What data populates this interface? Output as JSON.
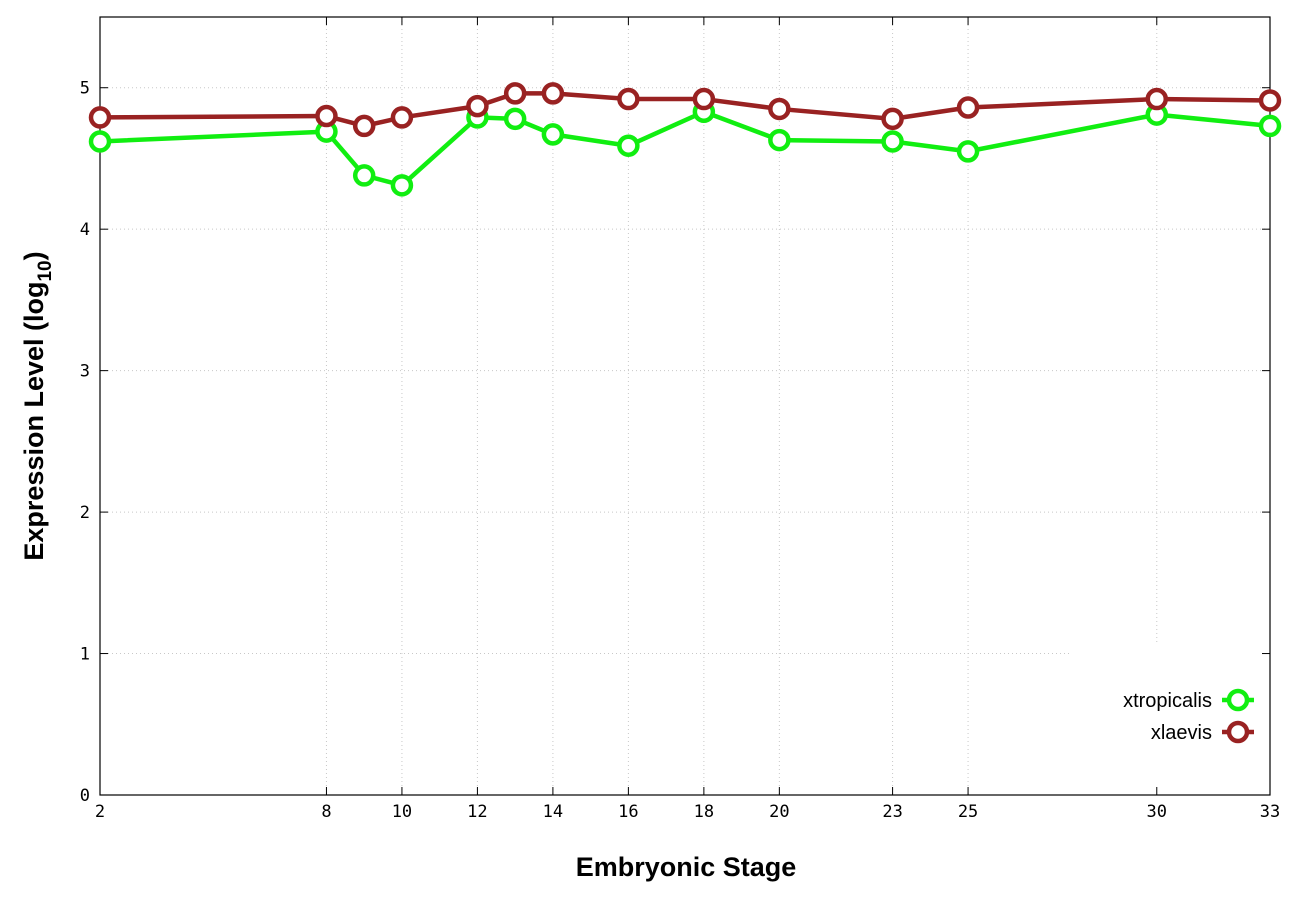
{
  "chart_data": {
    "type": "line",
    "xlabel": "Embryonic Stage",
    "ylabel_main": "Expression Level (log",
    "ylabel_sub": "10",
    "ylabel_close": ")",
    "ylim": [
      0,
      5.5
    ],
    "yticks": [
      0,
      1,
      2,
      3,
      4,
      5
    ],
    "xlim": [
      2,
      33
    ],
    "xticks": [
      2,
      8,
      10,
      12,
      14,
      16,
      18,
      20,
      23,
      25,
      30,
      33
    ],
    "grid": true,
    "legend_position": "bottom-right",
    "series": [
      {
        "name": "xtropicalis",
        "color": "#11ee11",
        "x": [
          2,
          8,
          9,
          10,
          12,
          13,
          14,
          16,
          18,
          20,
          23,
          25,
          30,
          33
        ],
        "y": [
          4.62,
          4.69,
          4.38,
          4.31,
          4.79,
          4.78,
          4.67,
          4.59,
          4.83,
          4.63,
          4.62,
          4.55,
          4.81,
          4.73
        ]
      },
      {
        "name": "xlaevis",
        "color": "#992222",
        "x": [
          2,
          8,
          9,
          10,
          12,
          13,
          14,
          16,
          18,
          20,
          23,
          25,
          30,
          33
        ],
        "y": [
          4.79,
          4.8,
          4.73,
          4.79,
          4.87,
          4.96,
          4.96,
          4.92,
          4.92,
          4.85,
          4.78,
          4.86,
          4.92,
          4.91
        ]
      }
    ]
  }
}
